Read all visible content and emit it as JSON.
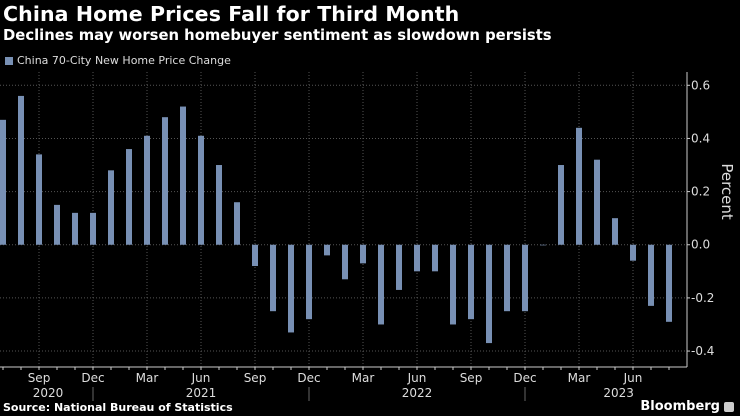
{
  "header": {
    "title": "China Home Prices Fall for Third Month",
    "subtitle": "Declines may worsen homebuyer sentiment as slowdown persists"
  },
  "footer": {
    "source": "Source: National Bureau of Statistics",
    "brand": "Bloomberg"
  },
  "colors": {
    "bar": "#7890b4",
    "background": "#000000"
  },
  "chart_data": {
    "type": "bar",
    "title": "",
    "xlabel": "",
    "ylabel": "Percent",
    "ylim": [
      -0.46,
      0.65
    ],
    "yticks": [
      0.6,
      0.4,
      0.2,
      0.0,
      -0.2,
      -0.4
    ],
    "ytick_labels": [
      "0.6",
      "0.4",
      "0.2",
      "0.0",
      "-0.2",
      "-0.4"
    ],
    "grid": true,
    "legend_position": "top-left",
    "series": [
      {
        "name": "China 70-City New Home Price Change",
        "categories": [
          "Jul 2020",
          "Aug 2020",
          "Sep 2020",
          "Oct 2020",
          "Nov 2020",
          "Dec 2020",
          "Jan 2021",
          "Feb 2021",
          "Mar 2021",
          "Apr 2021",
          "May 2021",
          "Jun 2021",
          "Jul 2021",
          "Aug 2021",
          "Sep 2021",
          "Oct 2021",
          "Nov 2021",
          "Dec 2021",
          "Jan 2022",
          "Feb 2022",
          "Mar 2022",
          "Apr 2022",
          "May 2022",
          "Jun 2022",
          "Jul 2022",
          "Aug 2022",
          "Sep 2022",
          "Oct 2022",
          "Nov 2022",
          "Dec 2022",
          "Jan 2023",
          "Feb 2023",
          "Mar 2023",
          "Apr 2023",
          "May 2023",
          "Jun 2023",
          "Jul 2023",
          "Aug 2023"
        ],
        "values": [
          0.47,
          0.56,
          0.34,
          0.15,
          0.12,
          0.12,
          0.28,
          0.36,
          0.41,
          0.48,
          0.52,
          0.41,
          0.3,
          0.16,
          -0.08,
          -0.25,
          -0.33,
          -0.28,
          -0.04,
          -0.13,
          -0.07,
          -0.3,
          -0.17,
          -0.1,
          -0.1,
          -0.3,
          -0.28,
          -0.37,
          -0.25,
          -0.25,
          0.0,
          0.3,
          0.44,
          0.32,
          0.1,
          -0.06,
          -0.23,
          -0.29
        ]
      }
    ],
    "xtick_labels": [
      {
        "label": "Sep",
        "index": 2
      },
      {
        "label": "Dec",
        "index": 5
      },
      {
        "label": "Mar",
        "index": 8
      },
      {
        "label": "Jun",
        "index": 11
      },
      {
        "label": "Sep",
        "index": 14
      },
      {
        "label": "Dec",
        "index": 17
      },
      {
        "label": "Mar",
        "index": 20
      },
      {
        "label": "Jun",
        "index": 23
      },
      {
        "label": "Sep",
        "index": 26
      },
      {
        "label": "Dec",
        "index": 29
      },
      {
        "label": "Mar",
        "index": 32
      },
      {
        "label": "Jun",
        "index": 35
      }
    ],
    "year_labels": [
      {
        "label": "2020",
        "index": 2.5
      },
      {
        "label": "2021",
        "index": 11
      },
      {
        "label": "2022",
        "index": 23
      },
      {
        "label": "2023",
        "index": 34.2
      }
    ]
  }
}
